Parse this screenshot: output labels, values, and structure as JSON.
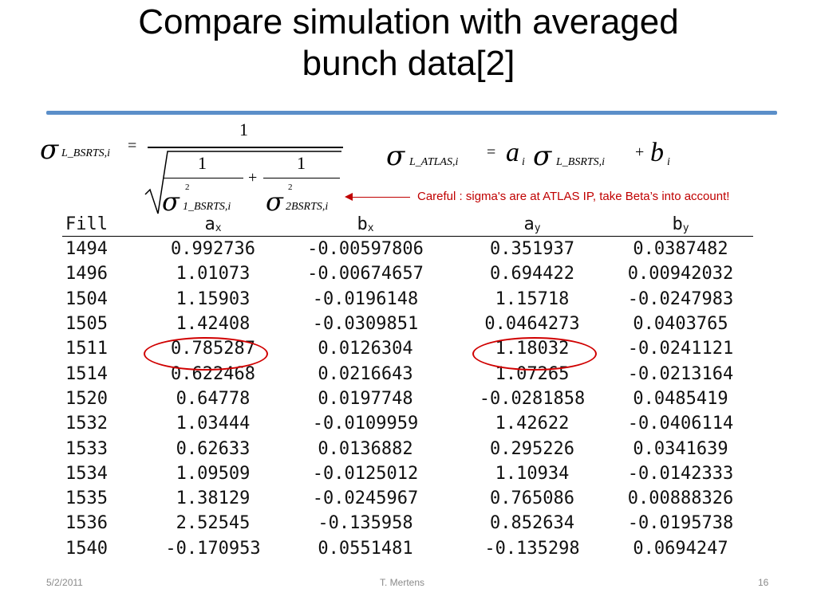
{
  "slide": {
    "title_line1": "Compare simulation with averaged",
    "title_line2": "bunch data[2]",
    "note": "Careful : sigma's are at ATLAS IP, take Beta’s into account!"
  },
  "equation_left": {
    "lhs_sub": "L_BSRTS,i",
    "eq": "=",
    "numerator": "1",
    "inner_num1": "1",
    "inner_num2": "1",
    "plus": "+",
    "sq1": "2",
    "sq2": "2",
    "den1_sub": "1_BSRTS,i",
    "den2_sub": "2BSRTS,i"
  },
  "equation_right": {
    "lhs_sub": "L_ATLAS,i",
    "eq": "=",
    "a": "a",
    "a_sub": "i",
    "rhs_sub": "L_BSRTS,i",
    "plus": "+",
    "b": "b",
    "b_sub": "i"
  },
  "table": {
    "headers": {
      "fill": "Fill",
      "ax": "a",
      "ax_sub": "x",
      "bx": "b",
      "bx_sub": "x",
      "ay": "a",
      "ay_sub": "y",
      "by": "b",
      "by_sub": "y"
    },
    "rows": [
      [
        "1494",
        "0.992736",
        "-0.00597806",
        "0.351937",
        "0.0387482"
      ],
      [
        "1496",
        "1.01073",
        "-0.00674657",
        "0.694422",
        "0.00942032"
      ],
      [
        "1504",
        "1.15903",
        "-0.0196148",
        "1.15718",
        "-0.0247983"
      ],
      [
        "1505",
        "1.42408",
        "-0.0309851",
        "0.0464273",
        "0.0403765"
      ],
      [
        "1511",
        "0.785287",
        "0.0126304",
        "1.18032",
        "-0.0241121"
      ],
      [
        "1514",
        "0.622468",
        "0.0216643",
        "1.07265",
        "-0.0213164"
      ],
      [
        "1520",
        "0.64778",
        "0.0197748",
        "-0.0281858",
        "0.0485419"
      ],
      [
        "1532",
        "1.03444",
        "-0.0109959",
        "1.42622",
        "-0.0406114"
      ],
      [
        "1533",
        "0.62633",
        "0.0136882",
        "0.295226",
        "0.0341639"
      ],
      [
        "1534",
        "1.09509",
        "-0.0125012",
        "1.10934",
        "-0.0142333"
      ],
      [
        "1535",
        "1.38129",
        "-0.0245967",
        "0.765086",
        "0.00888326"
      ],
      [
        "1536",
        "2.52545",
        "-0.135958",
        "0.852634",
        "-0.0195738"
      ],
      [
        "1540",
        "-0.170953",
        "0.0551481",
        "-0.135298",
        "0.0694247"
      ]
    ]
  },
  "footer": {
    "date": "5/2/2011",
    "author": "T. Mertens",
    "page": "16"
  },
  "colors": {
    "title_rule": "#5b8fc9",
    "note": "#c00000",
    "highlight_circle": "#d00000"
  }
}
